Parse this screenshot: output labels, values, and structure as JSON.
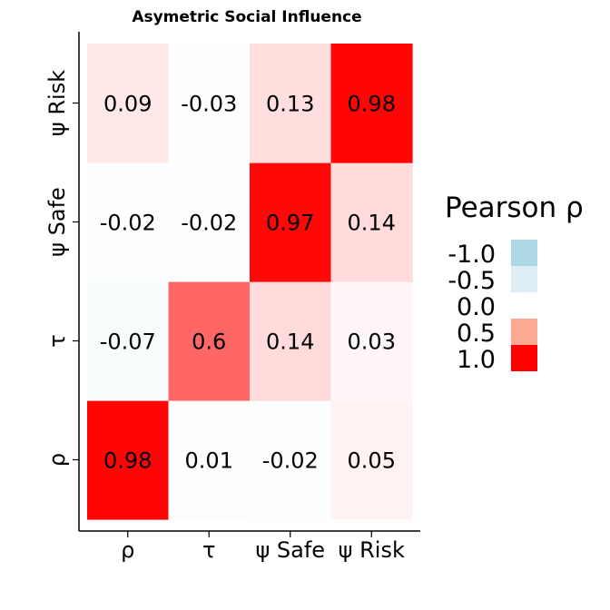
{
  "chart_data": {
    "type": "heatmap",
    "title": "Asymetric Social Influence",
    "xlabel": "",
    "ylabel": "",
    "x_categories": [
      "ρ",
      "τ",
      "ψ Safe",
      "ψ Risk"
    ],
    "y_categories": [
      "ρ",
      "τ",
      "ψ Safe",
      "ψ Risk"
    ],
    "values": [
      [
        0.98,
        0.01,
        -0.02,
        0.05
      ],
      [
        -0.07,
        0.6,
        0.14,
        0.03
      ],
      [
        -0.02,
        -0.02,
        0.97,
        0.14
      ],
      [
        0.09,
        -0.03,
        0.13,
        0.98
      ]
    ],
    "value_range": [
      -1.0,
      1.0
    ],
    "legend": {
      "title": "Pearson ρ",
      "position": "right",
      "entries": [
        {
          "label": "-1.0",
          "value": -1.0,
          "color": "#add8e6"
        },
        {
          "label": "-0.5",
          "value": -0.5,
          "color": "#deeef4"
        },
        {
          "label": "0.0",
          "value": 0.0,
          "color": "#ffffff"
        },
        {
          "label": "0.5",
          "value": 0.5,
          "color": "#fca993"
        },
        {
          "label": "1.0",
          "value": 1.0,
          "color": "#ff0000"
        }
      ]
    },
    "colors": {
      "negative": "#add8e6",
      "zero": "#ffffff",
      "positive": "#ff0000"
    }
  }
}
